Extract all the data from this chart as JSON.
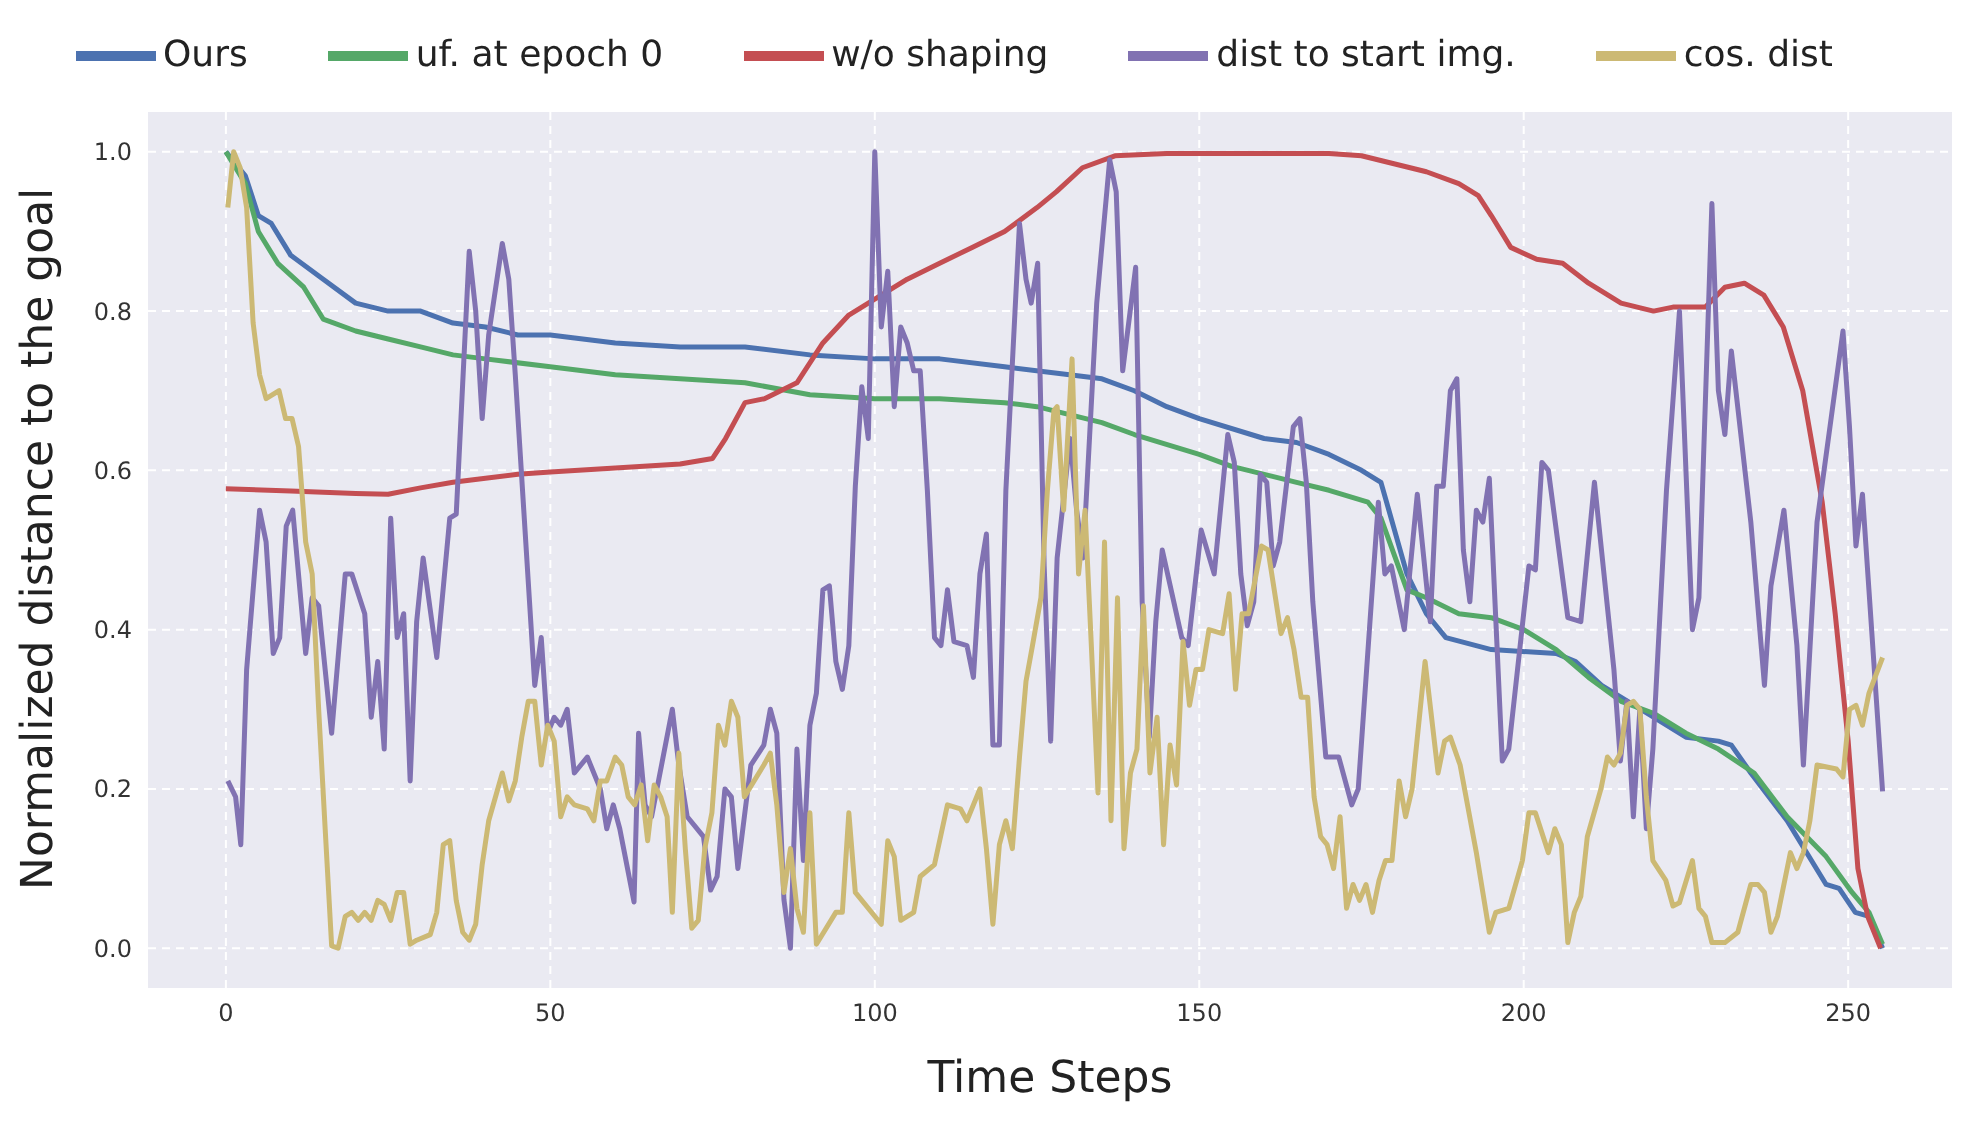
{
  "chart_data": {
    "type": "line",
    "xlabel": "Time Steps",
    "ylabel": "Normalized distance to the goal",
    "xlim": [
      -12,
      266
    ],
    "ylim": [
      -0.05,
      1.05
    ],
    "xticks": [
      0,
      50,
      100,
      150,
      200,
      250
    ],
    "yticks": [
      {
        "value": 0,
        "label": "0.0"
      },
      {
        "value": 0.2,
        "label": "0.2"
      },
      {
        "value": 0.4,
        "label": "0.4"
      },
      {
        "value": 0.6,
        "label": "0.6"
      },
      {
        "value": 0.8,
        "label": "0.8"
      },
      {
        "value": 1,
        "label": "1.0"
      }
    ],
    "grid": true,
    "legend": "top",
    "line_style": "solid",
    "marker": "none",
    "series": [
      {
        "name": "Ours",
        "color": "#4c72b0",
        "x": [
          0,
          3,
          5,
          7,
          10,
          15,
          20,
          25,
          30,
          35,
          40,
          45,
          50,
          60,
          70,
          80,
          90,
          100,
          110,
          120,
          130,
          135,
          140,
          145,
          150,
          160,
          165,
          170,
          175,
          178,
          182,
          185,
          188,
          195,
          205,
          208,
          212,
          220,
          225,
          230,
          232,
          235,
          240.6,
          246.6,
          248.6,
          251.1,
          253.2,
          255.3
        ],
        "values": [
          1.0,
          0.97,
          0.92,
          0.91,
          0.87,
          0.84,
          0.81,
          0.8,
          0.8,
          0.785,
          0.78,
          0.77,
          0.77,
          0.76,
          0.755,
          0.755,
          0.745,
          0.74,
          0.74,
          0.73,
          0.72,
          0.715,
          0.7,
          0.68,
          0.665,
          0.64,
          0.635,
          0.62,
          0.6,
          0.585,
          0.47,
          0.42,
          0.39,
          0.375,
          0.37,
          0.36,
          0.33,
          0.29,
          0.265,
          0.26,
          0.255,
          0.22,
          0.16,
          0.08,
          0.075,
          0.045,
          0.04,
          0.0
        ]
      },
      {
        "name": "uf. at epoch 0",
        "color": "#55a868",
        "x": [
          0,
          3,
          5,
          8,
          12,
          15,
          20,
          25,
          30,
          35,
          40,
          50,
          60,
          70,
          80,
          90,
          100,
          110,
          120,
          125,
          130,
          135,
          140,
          150,
          155,
          165,
          170,
          176,
          178,
          182,
          185,
          190,
          195,
          200,
          205,
          210,
          215,
          220,
          225,
          230,
          235.5,
          240.6,
          246.6,
          250.6,
          253.2,
          255.3
        ],
        "values": [
          1.0,
          0.96,
          0.9,
          0.86,
          0.83,
          0.79,
          0.775,
          0.765,
          0.755,
          0.745,
          0.74,
          0.73,
          0.72,
          0.715,
          0.71,
          0.695,
          0.69,
          0.69,
          0.685,
          0.68,
          0.67,
          0.66,
          0.645,
          0.62,
          0.605,
          0.585,
          0.575,
          0.56,
          0.54,
          0.45,
          0.44,
          0.42,
          0.415,
          0.4,
          0.375,
          0.34,
          0.31,
          0.295,
          0.27,
          0.25,
          0.22,
          0.165,
          0.115,
          0.07,
          0.045,
          0.005
        ]
      },
      {
        "name": "w/o shaping",
        "color": "#c44e52",
        "x": [
          0,
          10,
          20,
          25,
          30,
          35,
          40,
          45,
          50,
          60,
          70,
          75,
          77,
          80,
          83,
          88,
          92,
          96,
          100,
          105,
          110,
          115,
          120,
          125,
          128,
          132,
          137,
          145,
          160,
          170,
          175,
          180,
          185,
          190,
          193,
          195,
          198,
          202,
          206,
          210,
          215,
          220,
          223,
          228,
          231,
          234,
          237,
          240,
          243,
          246,
          248,
          250,
          251.5,
          253,
          255
        ],
        "values": [
          0.577,
          0.574,
          0.571,
          0.57,
          0.578,
          0.585,
          0.59,
          0.595,
          0.598,
          0.603,
          0.608,
          0.615,
          0.64,
          0.685,
          0.69,
          0.71,
          0.76,
          0.795,
          0.815,
          0.84,
          0.86,
          0.88,
          0.9,
          0.93,
          0.95,
          0.98,
          0.995,
          0.998,
          0.998,
          0.998,
          0.995,
          0.985,
          0.975,
          0.96,
          0.945,
          0.92,
          0.88,
          0.865,
          0.86,
          0.835,
          0.81,
          0.8,
          0.805,
          0.805,
          0.83,
          0.835,
          0.82,
          0.78,
          0.7,
          0.56,
          0.42,
          0.26,
          0.1,
          0.04,
          0.0
        ]
      },
      {
        "name": "dist to start img.",
        "color": "#8172b2",
        "x": [
          0.3,
          1.5,
          2.3,
          3.2,
          5.2,
          6.2,
          7.3,
          8.3,
          9.3,
          10.3,
          12.3,
          13.3,
          14.3,
          16.3,
          18.4,
          19.4,
          21.4,
          22.4,
          23.4,
          24.4,
          25.4,
          26.4,
          27.4,
          28.4,
          29.4,
          30.4,
          32.5,
          34.5,
          35.5,
          37.5,
          38.5,
          39.5,
          40.5,
          42.6,
          43.6,
          44.6,
          47.6,
          48.6,
          49.6,
          50.6,
          51.6,
          52.6,
          53.7,
          55.7,
          57.7,
          58.7,
          59.7,
          60.7,
          62.9,
          63.6,
          64.6,
          65.6,
          68.8,
          69.8,
          71.1,
          73.6,
          74.7,
          75.7,
          76.9,
          77.9,
          78.9,
          79.9,
          80.9,
          82.9,
          83.9,
          84.9,
          86,
          87,
          88,
          89,
          90,
          91,
          92,
          93,
          94,
          95,
          96,
          97,
          98,
          99,
          100,
          101,
          102,
          103,
          104,
          105,
          106,
          107,
          108.1,
          109.2,
          110.2,
          111.2,
          112.2,
          114.2,
          115.2,
          116.2,
          117.2,
          118.2,
          119.2,
          120.2,
          122.3,
          123.3,
          124.1,
          125.1,
          126.1,
          127.1,
          128.1,
          130.1,
          131.1,
          132.1,
          134.2,
          136.2,
          137.2,
          138.2,
          140.2,
          141.2,
          142.3,
          143.3,
          144.3,
          147.3,
          148.3,
          150.3,
          152.3,
          154.4,
          155.4,
          156.4,
          157.4,
          158.4,
          159.4,
          160.4,
          161.4,
          162.4,
          164.5,
          165.5,
          166.5,
          167.5,
          169.5,
          171.5,
          173.5,
          174.5,
          177.6,
          178.6,
          179.6,
          181.6,
          183.6,
          185.6,
          186.6,
          187.6,
          188.7,
          189.7,
          190.7,
          191.7,
          192.7,
          193.7,
          194.7,
          196.7,
          197.7,
          200.8,
          201.8,
          202.8,
          203.8,
          206.8,
          208.8,
          210.9,
          213.9,
          214.9,
          215.9,
          216.9,
          217.9,
          218.9,
          219.9,
          222,
          224,
          226,
          227,
          229,
          230,
          231,
          232,
          235,
          237.1,
          238.1,
          240.1,
          242.1,
          243.1,
          245.2,
          249.2,
          250.2,
          251.2,
          252.2,
          253.2,
          255.3
        ],
        "values": [
          0.21,
          0.19,
          0.13,
          0.35,
          0.55,
          0.51,
          0.37,
          0.39,
          0.53,
          0.55,
          0.37,
          0.44,
          0.43,
          0.27,
          0.47,
          0.47,
          0.42,
          0.29,
          0.36,
          0.25,
          0.54,
          0.39,
          0.42,
          0.21,
          0.41,
          0.49,
          0.365,
          0.54,
          0.545,
          0.875,
          0.8,
          0.665,
          0.77,
          0.885,
          0.84,
          0.72,
          0.33,
          0.39,
          0.27,
          0.29,
          0.28,
          0.3,
          0.22,
          0.24,
          0.2,
          0.15,
          0.18,
          0.15,
          0.058,
          0.27,
          0.18,
          0.165,
          0.3,
          0.23,
          0.165,
          0.14,
          0.073,
          0.09,
          0.2,
          0.19,
          0.1,
          0.165,
          0.23,
          0.255,
          0.3,
          0.27,
          0.061,
          0.0,
          0.25,
          0.11,
          0.28,
          0.32,
          0.45,
          0.455,
          0.36,
          0.325,
          0.38,
          0.58,
          0.705,
          0.64,
          1.0,
          0.78,
          0.85,
          0.68,
          0.78,
          0.76,
          0.725,
          0.725,
          0.575,
          0.39,
          0.38,
          0.45,
          0.385,
          0.38,
          0.34,
          0.47,
          0.52,
          0.255,
          0.255,
          0.575,
          0.91,
          0.84,
          0.81,
          0.86,
          0.48,
          0.26,
          0.49,
          0.64,
          0.55,
          0.49,
          0.81,
          0.99,
          0.95,
          0.725,
          0.855,
          0.435,
          0.265,
          0.41,
          0.5,
          0.39,
          0.38,
          0.525,
          0.47,
          0.645,
          0.61,
          0.47,
          0.405,
          0.435,
          0.595,
          0.585,
          0.48,
          0.51,
          0.655,
          0.665,
          0.585,
          0.435,
          0.24,
          0.24,
          0.18,
          0.2,
          0.56,
          0.47,
          0.48,
          0.4,
          0.57,
          0.41,
          0.58,
          0.58,
          0.7,
          0.715,
          0.5,
          0.435,
          0.55,
          0.535,
          0.59,
          0.235,
          0.25,
          0.48,
          0.475,
          0.61,
          0.6,
          0.415,
          0.41,
          0.585,
          0.35,
          0.235,
          0.31,
          0.165,
          0.3,
          0.15,
          0.25,
          0.575,
          0.8,
          0.4,
          0.44,
          0.935,
          0.7,
          0.645,
          0.75,
          0.535,
          0.33,
          0.455,
          0.55,
          0.38,
          0.23,
          0.535,
          0.775,
          0.655,
          0.505,
          0.57,
          0.45,
          0.197
        ]
      },
      {
        "name": "cos. dist",
        "color": "#ccb974",
        "x": [
          0.3,
          1.2,
          2.2,
          3.2,
          4.2,
          5.2,
          6.2,
          8.2,
          9.2,
          10.2,
          11.2,
          12.3,
          13.3,
          14.3,
          15.3,
          16.3,
          17.3,
          18.4,
          19.4,
          20.4,
          21.4,
          22.4,
          23.4,
          24.4,
          25.4,
          26.4,
          27.4,
          28.4,
          29.4,
          31.5,
          32.5,
          33.5,
          34.5,
          35.5,
          36.5,
          37.5,
          38.5,
          39.5,
          40.5,
          42.6,
          43.6,
          44.6,
          45.6,
          46.6,
          47.6,
          48.6,
          49.6,
          50.6,
          51.6,
          52.6,
          53.7,
          55.7,
          56.7,
          57.7,
          58.7,
          60,
          61,
          62,
          63,
          64,
          65,
          66,
          67,
          68,
          68.8,
          69.8,
          70.8,
          71.8,
          72.8,
          73.8,
          74.9,
          75.9,
          76.9,
          77.9,
          78.9,
          79.9,
          82.9,
          83.9,
          84.9,
          86,
          87,
          88,
          89,
          90,
          91,
          94,
          95,
          96,
          97,
          101,
          102,
          103,
          104,
          106,
          107,
          109.2,
          111.2,
          113.2,
          114.2,
          116.2,
          117.2,
          118.2,
          119.2,
          120.2,
          121.2,
          122.3,
          123.3,
          124.3,
          125.6,
          126.6,
          127.6,
          128.1,
          129.1,
          130.4,
          131.4,
          132.4,
          133.4,
          134.4,
          135.4,
          136.4,
          137.4,
          138.4,
          139.4,
          140.4,
          141.4,
          142.4,
          143.5,
          144.5,
          145.5,
          146.5,
          147.5,
          148.5,
          149.5,
          150.5,
          151.5,
          153.6,
          154.6,
          155.6,
          156.6,
          157.6,
          159.6,
          160.6,
          162.6,
          163.6,
          164.6,
          165.7,
          166.7,
          167.7,
          168.7,
          169.7,
          170.7,
          171.7,
          172.7,
          173.7,
          174.7,
          175.7,
          176.7,
          177.7,
          178.7,
          179.7,
          180.8,
          181.8,
          182.8,
          184.8,
          186.8,
          187.8,
          188.7,
          190.2,
          192.7,
          194.7,
          195.7,
          197.7,
          199.8,
          200.8,
          201.8,
          203.8,
          204.8,
          205.8,
          206.8,
          207.8,
          208.8,
          209.8,
          211.9,
          212.9,
          213.9,
          214.9,
          215.9,
          216.9,
          217.9,
          218.9,
          219.9,
          221.9,
          223,
          224,
          226,
          227,
          228,
          229,
          231,
          233,
          235,
          236.1,
          237.1,
          238.1,
          239.1,
          241.1,
          242.1,
          243.1,
          244.1,
          245.2,
          248.2,
          249.2,
          250.2,
          251.2,
          252.2,
          253.2,
          255.3
        ],
        "values": [
          0.93,
          1.0,
          0.98,
          0.93,
          0.785,
          0.72,
          0.69,
          0.7,
          0.665,
          0.665,
          0.63,
          0.51,
          0.47,
          0.3,
          0.15,
          0.003,
          0.0,
          0.04,
          0.045,
          0.035,
          0.045,
          0.035,
          0.06,
          0.055,
          0.035,
          0.07,
          0.07,
          0.005,
          0.01,
          0.017,
          0.045,
          0.13,
          0.135,
          0.06,
          0.02,
          0.01,
          0.03,
          0.105,
          0.16,
          0.22,
          0.185,
          0.21,
          0.265,
          0.31,
          0.31,
          0.23,
          0.28,
          0.26,
          0.165,
          0.19,
          0.18,
          0.175,
          0.16,
          0.21,
          0.21,
          0.24,
          0.23,
          0.19,
          0.18,
          0.205,
          0.135,
          0.205,
          0.19,
          0.165,
          0.045,
          0.245,
          0.125,
          0.025,
          0.035,
          0.125,
          0.17,
          0.28,
          0.255,
          0.31,
          0.29,
          0.19,
          0.23,
          0.245,
          0.18,
          0.07,
          0.125,
          0.05,
          0.02,
          0.17,
          0.005,
          0.045,
          0.045,
          0.17,
          0.07,
          0.03,
          0.135,
          0.115,
          0.035,
          0.045,
          0.09,
          0.105,
          0.18,
          0.175,
          0.16,
          0.2,
          0.125,
          0.03,
          0.13,
          0.16,
          0.125,
          0.24,
          0.335,
          0.38,
          0.44,
          0.575,
          0.675,
          0.68,
          0.55,
          0.74,
          0.47,
          0.55,
          0.375,
          0.195,
          0.51,
          0.16,
          0.44,
          0.125,
          0.22,
          0.25,
          0.43,
          0.22,
          0.29,
          0.13,
          0.255,
          0.205,
          0.385,
          0.305,
          0.35,
          0.35,
          0.4,
          0.395,
          0.445,
          0.325,
          0.42,
          0.42,
          0.505,
          0.5,
          0.395,
          0.415,
          0.375,
          0.315,
          0.315,
          0.19,
          0.14,
          0.13,
          0.1,
          0.165,
          0.05,
          0.08,
          0.06,
          0.08,
          0.045,
          0.085,
          0.11,
          0.11,
          0.21,
          0.165,
          0.2,
          0.36,
          0.22,
          0.26,
          0.265,
          0.23,
          0.12,
          0.02,
          0.045,
          0.05,
          0.11,
          0.17,
          0.17,
          0.12,
          0.15,
          0.13,
          0.007,
          0.045,
          0.065,
          0.14,
          0.2,
          0.24,
          0.23,
          0.245,
          0.305,
          0.31,
          0.3,
          0.19,
          0.11,
          0.085,
          0.053,
          0.057,
          0.11,
          0.05,
          0.04,
          0.007,
          0.007,
          0.02,
          0.08,
          0.08,
          0.07,
          0.02,
          0.04,
          0.12,
          0.1,
          0.12,
          0.16,
          0.23,
          0.225,
          0.215,
          0.3,
          0.305,
          0.28,
          0.32,
          0.365
        ]
      }
    ]
  }
}
